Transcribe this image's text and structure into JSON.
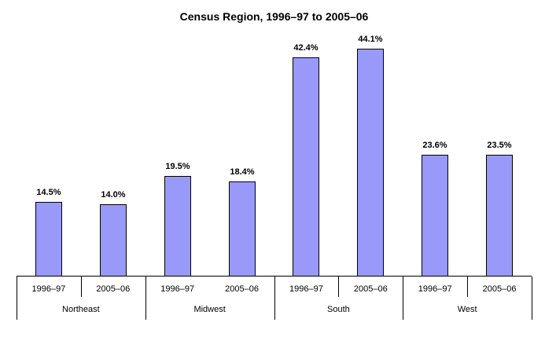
{
  "chart_data": {
    "type": "bar",
    "title": "Census Region, 1996–97 to 2005–06",
    "categories": [
      "Northeast",
      "Midwest",
      "South",
      "West"
    ],
    "series": [
      {
        "name": "1996–97",
        "values": [
          14.5,
          19.5,
          42.4,
          23.6
        ]
      },
      {
        "name": "2005–06",
        "values": [
          14.0,
          18.4,
          44.1,
          23.5
        ]
      }
    ],
    "groups": [
      {
        "region": "Northeast",
        "bars": [
          {
            "period": "1996–97",
            "value": 14.5,
            "label": "14.5%"
          },
          {
            "period": "2005–06",
            "value": 14.0,
            "label": "14.0%"
          }
        ],
        "divider_between_years": true
      },
      {
        "region": "Midwest",
        "bars": [
          {
            "period": "1996–97",
            "value": 19.5,
            "label": "19.5%"
          },
          {
            "period": "2005–06",
            "value": 18.4,
            "label": "18.4%"
          }
        ],
        "divider_between_years": false
      },
      {
        "region": "South",
        "bars": [
          {
            "period": "1996–97",
            "value": 42.4,
            "label": "42.4%"
          },
          {
            "period": "2005–06",
            "value": 44.1,
            "label": "44.1%"
          }
        ],
        "divider_between_years": true
      },
      {
        "region": "West",
        "bars": [
          {
            "period": "1996–97",
            "value": 23.6,
            "label": "23.6%"
          },
          {
            "period": "2005–06",
            "value": 23.5,
            "label": "23.5%"
          }
        ],
        "divider_between_years": true
      }
    ],
    "value_suffix": "%",
    "ylim": [
      0,
      45
    ],
    "grid": false,
    "legend": "none",
    "y_axis_shown": false,
    "colors": {
      "bar_fill": "#9999FA",
      "bar_border": "#000000",
      "axis_line": "#000000",
      "text": "#000000",
      "background": "#FFFFFF"
    }
  }
}
